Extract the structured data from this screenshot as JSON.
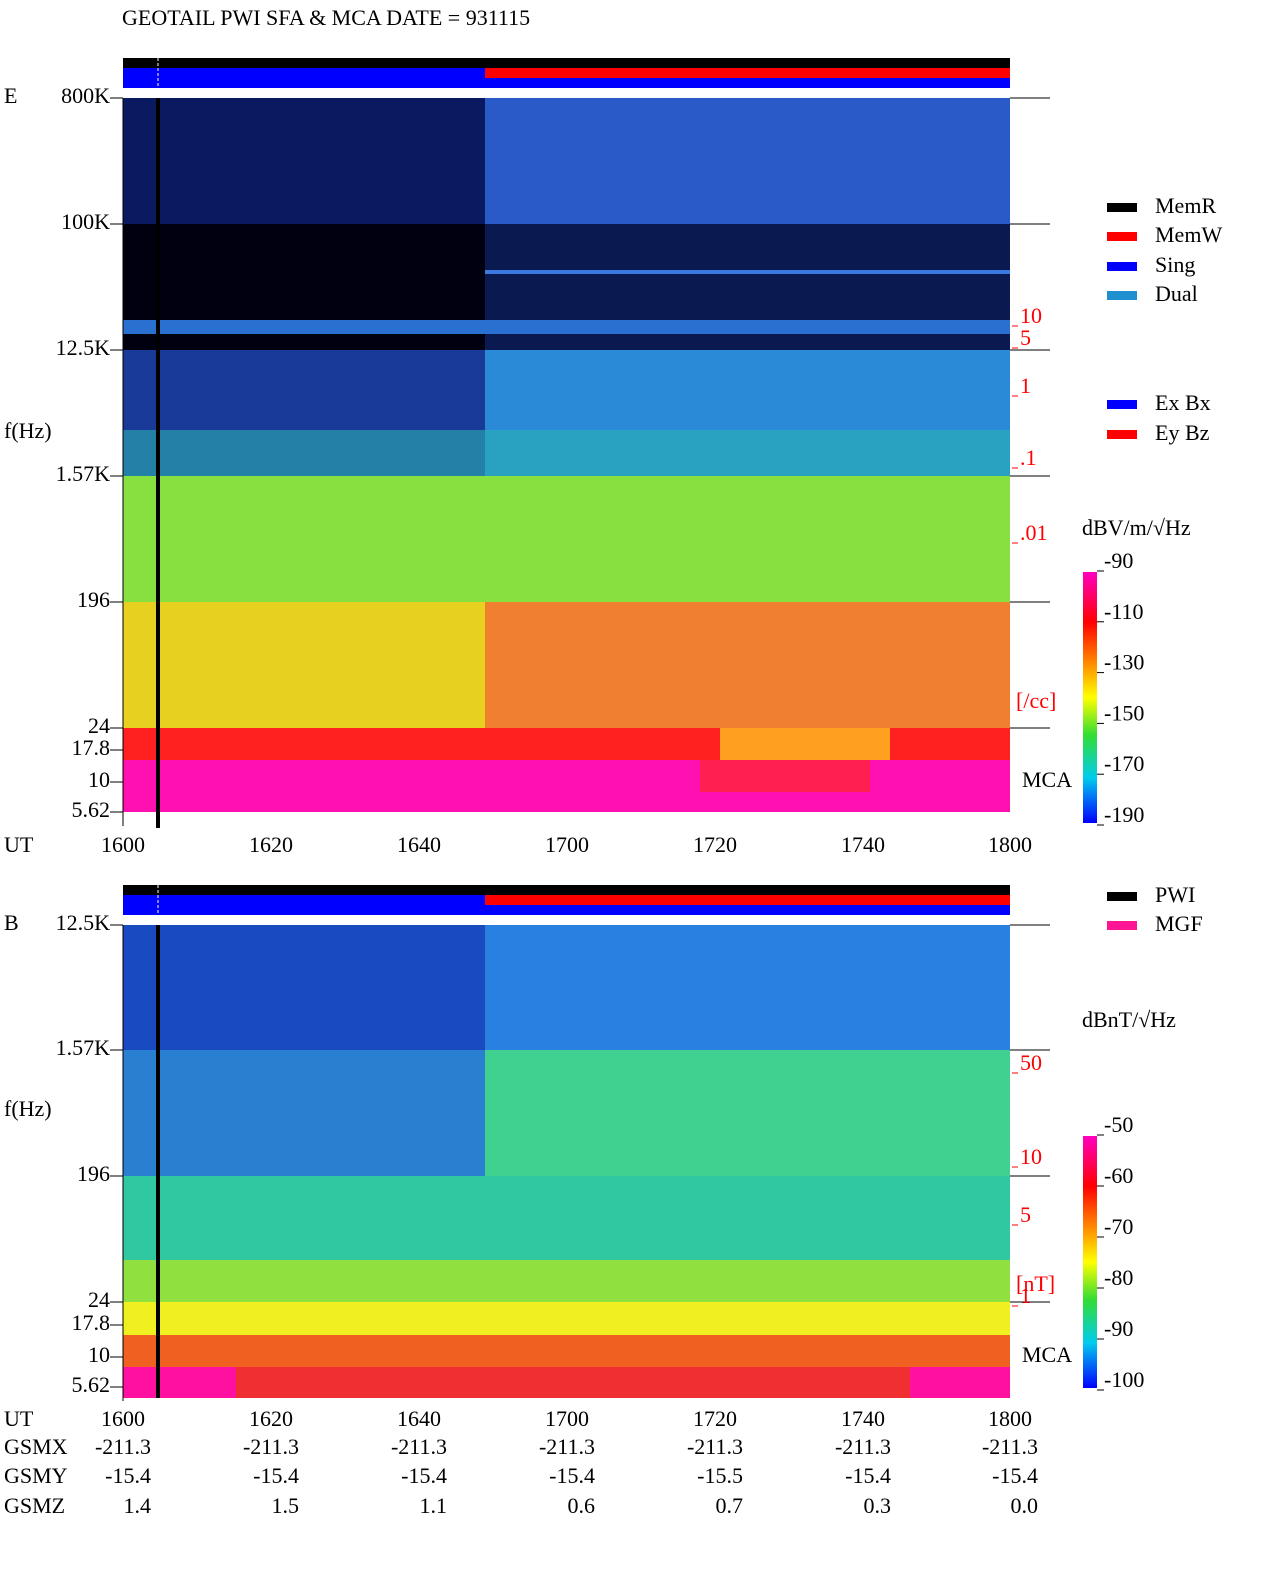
{
  "header": {
    "title": "GEOTAIL  PWI SFA & MCA   DATE = 931115"
  },
  "panels": [
    {
      "label": "E",
      "y_label": "f(Hz)",
      "yticks": [
        "800K",
        "100K",
        "12.5K",
        "1.57K",
        "196",
        "24",
        "17.8",
        "10",
        "5.62"
      ],
      "x_label": "UT",
      "xticks": [
        "1600",
        "1620",
        "1640",
        "1700",
        "1720",
        "1740",
        "1800"
      ],
      "right_ticks": [
        "10",
        "5",
        "1",
        ".1",
        ".01",
        "[/cc]"
      ],
      "right_note": "MCA",
      "legend": [
        {
          "name": "MemR",
          "color": "#000000"
        },
        {
          "name": "MemW",
          "color": "#ff0000"
        },
        {
          "name": "Sing",
          "color": "#0000ff"
        },
        {
          "name": "Dual",
          "color": "#1e90d0"
        }
      ],
      "legend2": [
        {
          "name": "Ex Bx",
          "color": "#0000ff"
        },
        {
          "name": "Ey Bz",
          "color": "#ff0000"
        }
      ],
      "colorbar": {
        "unit": "dBV/m/√Hz",
        "ticks": [
          -90,
          -110,
          -130,
          -150,
          -170,
          -190
        ]
      }
    },
    {
      "label": "B",
      "y_label": "f(Hz)",
      "yticks": [
        "12.5K",
        "1.57K",
        "196",
        "24",
        "17.8",
        "10",
        "5.62"
      ],
      "x_label": "UT",
      "xticks": [
        "1600",
        "1620",
        "1640",
        "1700",
        "1720",
        "1740",
        "1800"
      ],
      "right_ticks": [
        "50",
        "10",
        "5",
        "1",
        "[nT]"
      ],
      "right_note": "MCA",
      "legend": [
        {
          "name": "PWI",
          "color": "#000000"
        },
        {
          "name": "MGF",
          "color": "#ff1493"
        }
      ],
      "colorbar": {
        "unit": "dBnT/√Hz",
        "ticks": [
          -50,
          -60,
          -70,
          -80,
          -90,
          -100
        ]
      }
    }
  ],
  "orbit": {
    "rows": [
      {
        "label": "GSMX",
        "values": [
          "-211.3",
          "-211.3",
          "-211.3",
          "-211.3",
          "-211.3",
          "-211.3",
          "-211.3"
        ]
      },
      {
        "label": "GSMY",
        "values": [
          "-15.4",
          "-15.4",
          "-15.4",
          "-15.4",
          "-15.5",
          "-15.4",
          "-15.4"
        ]
      },
      {
        "label": "GSMZ",
        "values": [
          "1.4",
          "1.5",
          "1.1",
          "0.6",
          "0.7",
          "0.3",
          "0.0"
        ]
      }
    ]
  }
}
